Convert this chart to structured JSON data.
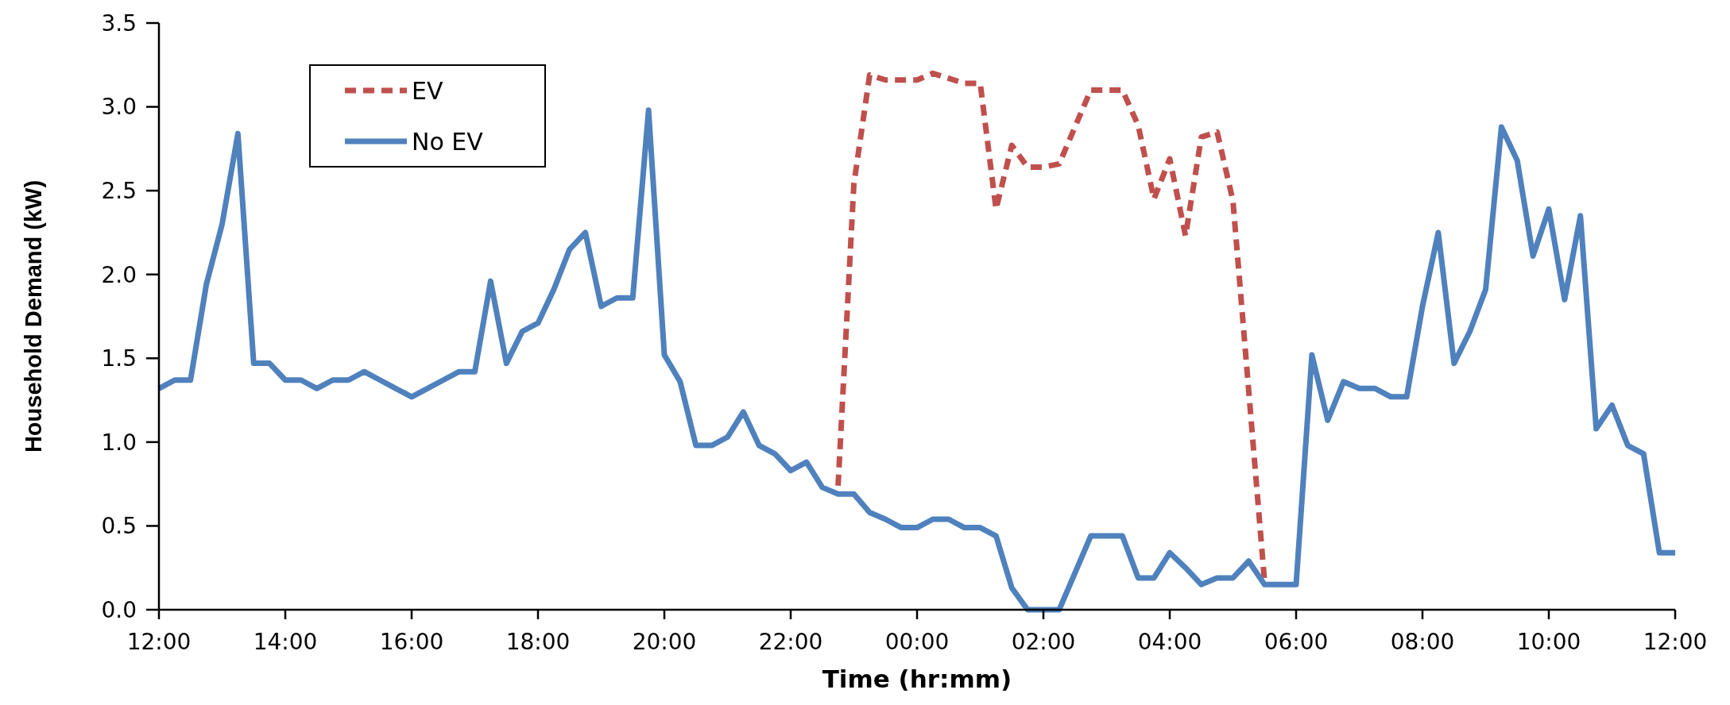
{
  "chart_data": {
    "type": "line",
    "xlabel": "Time (hr:mm)",
    "ylabel": "Household Demand (kW)",
    "xlim": [
      "2000-01-01T12:00",
      "2000-01-02T12:00"
    ],
    "xticks": [
      {
        "value": "2000-01-01T12:00",
        "label": "12:00"
      },
      {
        "value": "2000-01-01T14:00",
        "label": "14:00"
      },
      {
        "value": "2000-01-01T16:00",
        "label": "16:00"
      },
      {
        "value": "2000-01-01T18:00",
        "label": "18:00"
      },
      {
        "value": "2000-01-01T20:00",
        "label": "20:00"
      },
      {
        "value": "2000-01-01T22:00",
        "label": "22:00"
      },
      {
        "value": "2000-01-02T00:00",
        "label": "00:00"
      },
      {
        "value": "2000-01-02T02:00",
        "label": "02:00"
      },
      {
        "value": "2000-01-02T04:00",
        "label": "04:00"
      },
      {
        "value": "2000-01-02T06:00",
        "label": "06:00"
      },
      {
        "value": "2000-01-02T08:00",
        "label": "08:00"
      },
      {
        "value": "2000-01-02T10:00",
        "label": "10:00"
      },
      {
        "value": "2000-01-02T12:00",
        "label": "12:00"
      }
    ],
    "ylim": [
      0,
      3.5
    ],
    "yticks": [
      {
        "value": 0,
        "label": "0.0"
      },
      {
        "value": 0.5,
        "label": "0.5"
      },
      {
        "value": 1,
        "label": "1.0"
      },
      {
        "value": 1.5,
        "label": "1.5"
      },
      {
        "value": 2,
        "label": "2.0"
      },
      {
        "value": 2.5,
        "label": "2.5"
      },
      {
        "value": 3,
        "label": "3.0"
      },
      {
        "value": 3.5,
        "label": "3.5"
      }
    ],
    "grid": false,
    "legend": "top left",
    "marker": "none",
    "series": [
      {
        "name": "EV",
        "color": "#c0504d",
        "line_style": "dashed",
        "x": [
          "2000-01-01T22:45",
          "2000-01-01T23:00",
          "2000-01-01T23:15",
          "2000-01-01T23:30",
          "2000-01-01T23:45",
          "2000-01-02T00:00",
          "2000-01-02T00:15",
          "2000-01-02T00:30",
          "2000-01-02T00:45",
          "2000-01-02T01:00",
          "2000-01-02T01:15",
          "2000-01-02T01:30",
          "2000-01-02T01:45",
          "2000-01-02T02:00",
          "2000-01-02T02:15",
          "2000-01-02T02:30",
          "2000-01-02T02:45",
          "2000-01-02T03:00",
          "2000-01-02T03:15",
          "2000-01-02T03:30",
          "2000-01-02T03:45",
          "2000-01-02T04:00",
          "2000-01-02T04:15",
          "2000-01-02T04:30",
          "2000-01-02T04:45",
          "2000-01-02T05:00",
          "2000-01-02T05:30"
        ],
        "values": [
          0.74,
          2.54,
          3.19,
          3.16,
          3.16,
          3.16,
          3.2,
          3.17,
          3.14,
          3.14,
          2.39,
          2.77,
          2.64,
          2.64,
          2.66,
          2.88,
          3.1,
          3.1,
          3.1,
          2.89,
          2.45,
          2.69,
          2.23,
          2.82,
          2.85,
          2.44,
          0.17
        ]
      },
      {
        "name": "No EV",
        "color": "#4f81bd",
        "line_style": "solid",
        "x": [
          "2000-01-01T12:00",
          "2000-01-01T12:15",
          "2000-01-01T12:30",
          "2000-01-01T12:45",
          "2000-01-01T13:00",
          "2000-01-01T13:15",
          "2000-01-01T13:30",
          "2000-01-01T13:45",
          "2000-01-01T14:00",
          "2000-01-01T14:15",
          "2000-01-01T14:30",
          "2000-01-01T14:45",
          "2000-01-01T15:00",
          "2000-01-01T15:15",
          "2000-01-01T15:30",
          "2000-01-01T15:45",
          "2000-01-01T16:00",
          "2000-01-01T16:15",
          "2000-01-01T16:30",
          "2000-01-01T16:45",
          "2000-01-01T17:00",
          "2000-01-01T17:15",
          "2000-01-01T17:30",
          "2000-01-01T17:45",
          "2000-01-01T18:00",
          "2000-01-01T18:15",
          "2000-01-01T18:30",
          "2000-01-01T18:45",
          "2000-01-01T19:00",
          "2000-01-01T19:15",
          "2000-01-01T19:30",
          "2000-01-01T19:45",
          "2000-01-01T20:00",
          "2000-01-01T20:15",
          "2000-01-01T20:30",
          "2000-01-01T20:45",
          "2000-01-01T21:00",
          "2000-01-01T21:15",
          "2000-01-01T21:30",
          "2000-01-01T21:45",
          "2000-01-01T22:00",
          "2000-01-01T22:15",
          "2000-01-01T22:30",
          "2000-01-01T22:45",
          "2000-01-01T23:00",
          "2000-01-01T23:15",
          "2000-01-01T23:30",
          "2000-01-01T23:45",
          "2000-01-02T00:00",
          "2000-01-02T00:15",
          "2000-01-02T00:30",
          "2000-01-02T00:45",
          "2000-01-02T01:00",
          "2000-01-02T01:15",
          "2000-01-02T01:30",
          "2000-01-02T01:45",
          "2000-01-02T02:00",
          "2000-01-02T02:15",
          "2000-01-02T02:30",
          "2000-01-02T02:45",
          "2000-01-02T03:00",
          "2000-01-02T03:15",
          "2000-01-02T03:30",
          "2000-01-02T03:45",
          "2000-01-02T04:00",
          "2000-01-02T04:15",
          "2000-01-02T04:30",
          "2000-01-02T04:45",
          "2000-01-02T05:00",
          "2000-01-02T05:15",
          "2000-01-02T05:30",
          "2000-01-02T05:45",
          "2000-01-02T06:00",
          "2000-01-02T06:15",
          "2000-01-02T06:30",
          "2000-01-02T06:45",
          "2000-01-02T07:00",
          "2000-01-02T07:15",
          "2000-01-02T07:30",
          "2000-01-02T07:45",
          "2000-01-02T08:00",
          "2000-01-02T08:15",
          "2000-01-02T08:30",
          "2000-01-02T08:45",
          "2000-01-02T09:00",
          "2000-01-02T09:15",
          "2000-01-02T09:30",
          "2000-01-02T09:45",
          "2000-01-02T10:00",
          "2000-01-02T10:15",
          "2000-01-02T10:30",
          "2000-01-02T10:45",
          "2000-01-02T11:00",
          "2000-01-02T11:15",
          "2000-01-02T11:30",
          "2000-01-02T11:45",
          "2000-01-02T12:00"
        ],
        "values": [
          1.32,
          1.37,
          1.37,
          1.94,
          2.3,
          2.84,
          1.47,
          1.47,
          1.37,
          1.37,
          1.32,
          1.37,
          1.37,
          1.42,
          1.37,
          1.32,
          1.27,
          1.32,
          1.37,
          1.42,
          1.42,
          1.96,
          1.47,
          1.66,
          1.71,
          1.91,
          2.15,
          2.25,
          1.81,
          1.86,
          1.86,
          2.98,
          1.52,
          1.36,
          0.98,
          0.98,
          1.03,
          1.18,
          0.98,
          0.93,
          0.83,
          0.88,
          0.73,
          0.69,
          0.69,
          0.58,
          0.54,
          0.49,
          0.49,
          0.54,
          0.54,
          0.49,
          0.49,
          0.44,
          0.13,
          0,
          0,
          0,
          0.22,
          0.44,
          0.44,
          0.44,
          0.19,
          0.19,
          0.34,
          0.25,
          0.15,
          0.19,
          0.19,
          0.29,
          0.15,
          0.15,
          0.15,
          1.52,
          1.13,
          1.36,
          1.32,
          1.32,
          1.27,
          1.27,
          1.81,
          2.25,
          1.47,
          1.66,
          1.91,
          2.88,
          2.68,
          2.11,
          2.39,
          1.85,
          2.35,
          1.08,
          1.22,
          0.98,
          0.93,
          0.34,
          0.34
        ]
      }
    ]
  }
}
